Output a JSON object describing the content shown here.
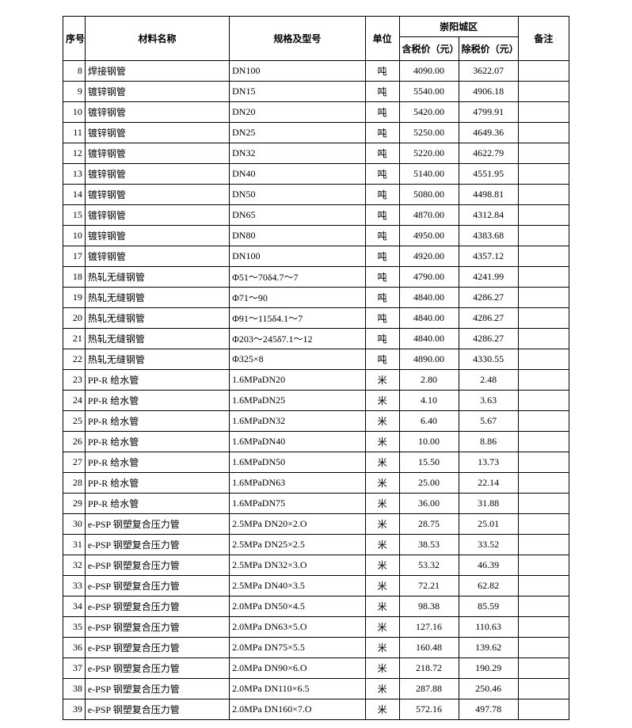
{
  "header": {
    "seq": "序号",
    "name": "材料名称",
    "spec": "规格及型号",
    "unit": "单位",
    "region": "崇阳城区",
    "price_tax": "含税价（元）",
    "price_notax": "除税价（元）",
    "note": "备注"
  },
  "rows": [
    {
      "seq": "8",
      "name": "焊接钢管",
      "spec": "DN100",
      "unit": "吨",
      "p1": "4090.00",
      "p2": "3622.07",
      "note": ""
    },
    {
      "seq": "9",
      "name": "镀锌钢管",
      "spec": "DN15",
      "unit": "吨",
      "p1": "5540.00",
      "p2": "4906.18",
      "note": ""
    },
    {
      "seq": "10",
      "name": "镀锌钢管",
      "spec": "DN20",
      "unit": "吨",
      "p1": "5420.00",
      "p2": "4799.91",
      "note": ""
    },
    {
      "seq": "11",
      "name": "镀锌钢管",
      "spec": "DN25",
      "unit": "吨",
      "p1": "5250.00",
      "p2": "4649.36",
      "note": ""
    },
    {
      "seq": "12",
      "name": "镀锌钢管",
      "spec": "DN32",
      "unit": "吨",
      "p1": "5220.00",
      "p2": "4622.79",
      "note": ""
    },
    {
      "seq": "13",
      "name": "镀锌钢管",
      "spec": "DN40",
      "unit": "吨",
      "p1": "5140.00",
      "p2": "4551.95",
      "note": ""
    },
    {
      "seq": "14",
      "name": "镀锌钢管",
      "spec": "DN50",
      "unit": "吨",
      "p1": "5080.00",
      "p2": "4498.81",
      "note": ""
    },
    {
      "seq": "15",
      "name": "镀锌钢管",
      "spec": "DN65",
      "unit": "吨",
      "p1": "4870.00",
      "p2": "4312.84",
      "note": ""
    },
    {
      "seq": "10",
      "name": "镀锌钢管",
      "spec": "DN80",
      "unit": "吨",
      "p1": "4950.00",
      "p2": "4383.68",
      "note": ""
    },
    {
      "seq": "17",
      "name": "镀锌钢管",
      "spec": "DN100",
      "unit": "吨",
      "p1": "4920.00",
      "p2": "4357.12",
      "note": ""
    },
    {
      "seq": "18",
      "name": "热轧无缝钢管",
      "spec": "Φ51～70δ4.7～7",
      "unit": "吨",
      "p1": "4790.00",
      "p2": "4241.99",
      "note": ""
    },
    {
      "seq": "19",
      "name": "热轧无缝钢管",
      "spec": "Φ71～90",
      "unit": "吨",
      "p1": "4840.00",
      "p2": "4286.27",
      "note": ""
    },
    {
      "seq": "20",
      "name": "热轧无缝钢管",
      "spec": "Φ91～115δ4.1～7",
      "unit": "吨",
      "p1": "4840.00",
      "p2": "4286.27",
      "note": ""
    },
    {
      "seq": "21",
      "name": "热轧无缝钢管",
      "spec": "Φ203～245δ7.1～12",
      "unit": "吨",
      "p1": "4840.00",
      "p2": "4286.27",
      "note": ""
    },
    {
      "seq": "22",
      "name": "热轧无缝钢管",
      "spec": "Φ325×8",
      "unit": "吨",
      "p1": "4890.00",
      "p2": "4330.55",
      "note": ""
    },
    {
      "seq": "23",
      "name": "PP-R 给水管",
      "spec": "1.6MPaDN20",
      "unit": "米",
      "p1": "2.80",
      "p2": "2.48",
      "note": ""
    },
    {
      "seq": "24",
      "name": "PP-R 给水管",
      "spec": "1.6MPaDN25",
      "unit": "米",
      "p1": "4.10",
      "p2": "3.63",
      "note": ""
    },
    {
      "seq": "25",
      "name": "PP-R 给水管",
      "spec": "1.6MPaDN32",
      "unit": "米",
      "p1": "6.40",
      "p2": "5.67",
      "note": ""
    },
    {
      "seq": "26",
      "name": "PP-R 给水管",
      "spec": "1.6MPaDN40",
      "unit": "米",
      "p1": "10.00",
      "p2": "8.86",
      "note": ""
    },
    {
      "seq": "27",
      "name": "PP-R 给水管",
      "spec": "1.6MPaDN50",
      "unit": "米",
      "p1": "15.50",
      "p2": "13.73",
      "note": ""
    },
    {
      "seq": "28",
      "name": "PP-R 给水管",
      "spec": "1.6MPaDN63",
      "unit": "米",
      "p1": "25.00",
      "p2": "22.14",
      "note": ""
    },
    {
      "seq": "29",
      "name": "PP-R 给水管",
      "spec": "1.6MPaDN75",
      "unit": "米",
      "p1": "36.00",
      "p2": "31.88",
      "note": ""
    },
    {
      "seq": "30",
      "name": "e-PSP 钢塑复合压力管",
      "spec": "2.5MPa DN20×2.O",
      "unit": "米",
      "p1": "28.75",
      "p2": "25.01",
      "note": ""
    },
    {
      "seq": "31",
      "name": "e-PSP 钢塑复合压力管",
      "spec": "2.5MPa DN25×2.5",
      "unit": "米",
      "p1": "38.53",
      "p2": "33.52",
      "note": ""
    },
    {
      "seq": "32",
      "name": "e-PSP 钢塑复合压力管",
      "spec": "2.5MPa DN32×3.O",
      "unit": "米",
      "p1": "53.32",
      "p2": "46.39",
      "note": ""
    },
    {
      "seq": "33",
      "name": "e-PSP 钢塑复合压力管",
      "spec": "2.5MPa DN40×3.5",
      "unit": "米",
      "p1": "72.21",
      "p2": "62.82",
      "note": ""
    },
    {
      "seq": "34",
      "name": "e-PSP 钢塑复合压力管",
      "spec": "2.0MPa DN50×4.5",
      "unit": "米",
      "p1": "98.38",
      "p2": "85.59",
      "note": ""
    },
    {
      "seq": "35",
      "name": "e-PSP 钢塑复合压力管",
      "spec": "2.0MPa DN63×5.O",
      "unit": "米",
      "p1": "127.16",
      "p2": "110.63",
      "note": ""
    },
    {
      "seq": "36",
      "name": "e-PSP 钢塑复合压力管",
      "spec": "2.0MPa DN75×5.5",
      "unit": "米",
      "p1": "160.48",
      "p2": "139.62",
      "note": ""
    },
    {
      "seq": "37",
      "name": "e-PSP 钢塑复合压力管",
      "spec": "2.0MPa DN90×6.O",
      "unit": "米",
      "p1": "218.72",
      "p2": "190.29",
      "note": ""
    },
    {
      "seq": "38",
      "name": "e-PSP 钢塑复合压力管",
      "spec": "2.0MPa DN110×6.5",
      "unit": "米",
      "p1": "287.88",
      "p2": "250.46",
      "note": ""
    },
    {
      "seq": "39",
      "name": "e-PSP 钢塑复合压力管",
      "spec": "2.0MPa DN160×7.O",
      "unit": "米",
      "p1": "572.16",
      "p2": "497.78",
      "note": ""
    }
  ]
}
